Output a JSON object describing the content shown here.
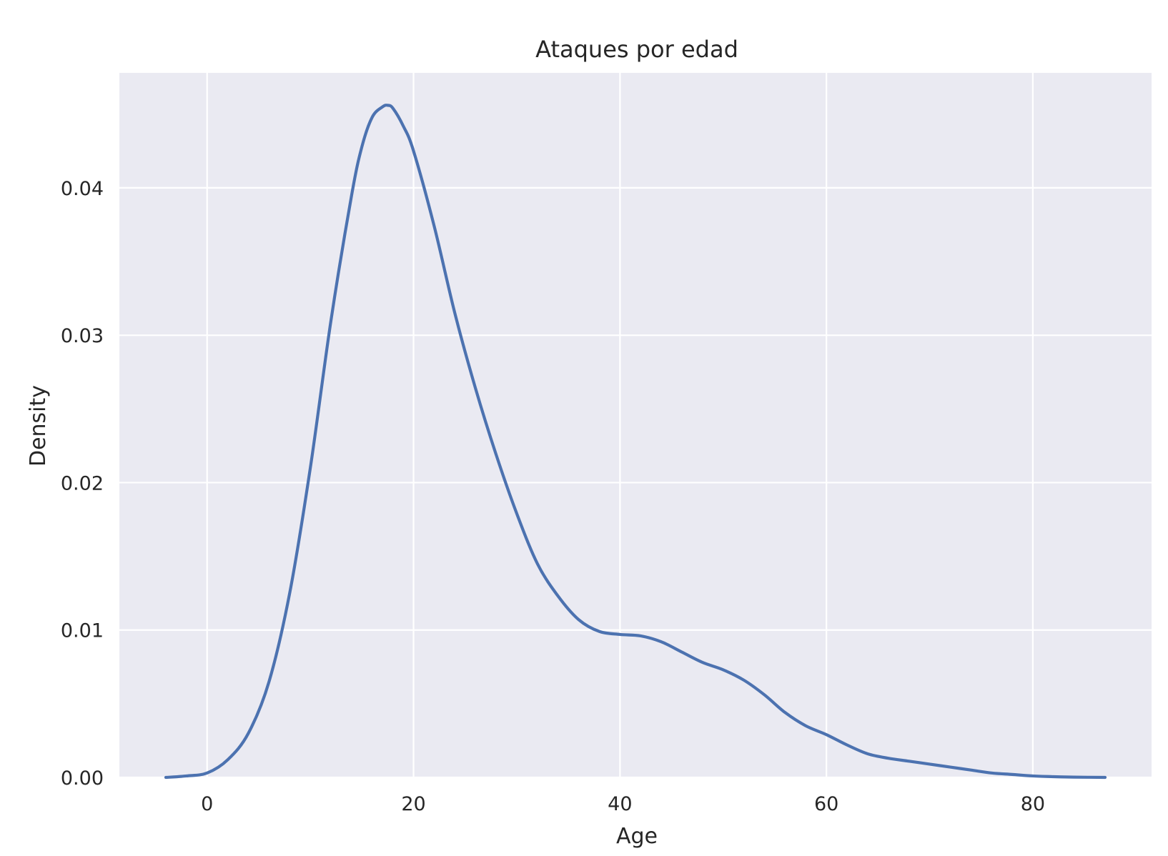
{
  "chart_data": {
    "type": "line",
    "title": "Ataques por edad",
    "xlabel": "Age",
    "ylabel": "Density",
    "xlim": [
      -8.5,
      91.5
    ],
    "ylim": [
      0,
      0.0478
    ],
    "x_ticks": [
      0,
      20,
      40,
      60,
      80
    ],
    "y_ticks": [
      0.0,
      0.01,
      0.02,
      0.03,
      0.04
    ],
    "x_tick_labels": [
      "0",
      "20",
      "40",
      "60",
      "80"
    ],
    "y_tick_labels": [
      "0.00",
      "0.01",
      "0.02",
      "0.03",
      "0.04"
    ],
    "grid": true,
    "legend": "none",
    "colors": {
      "line": "#4c72b0",
      "background": "#eaeaf2",
      "grid": "#ffffff",
      "text": "#262626"
    },
    "series": [
      {
        "x": [
          -4,
          -2,
          0,
          2,
          4,
          6,
          8,
          10,
          12,
          14,
          15,
          16,
          17,
          17.5,
          18,
          19,
          20,
          22,
          24,
          26,
          28,
          30,
          32,
          34,
          36,
          38,
          40,
          42,
          44,
          46,
          48,
          50,
          52,
          54,
          56,
          58,
          60,
          62,
          64,
          66,
          68,
          70,
          72,
          74,
          76,
          78,
          80,
          82,
          84,
          87
        ],
        "y": [
          0.0,
          0.0001,
          0.0003,
          0.0012,
          0.003,
          0.0065,
          0.0125,
          0.021,
          0.031,
          0.0395,
          0.0428,
          0.0448,
          0.0455,
          0.0456,
          0.0454,
          0.0442,
          0.0425,
          0.0374,
          0.0315,
          0.0264,
          0.0219,
          0.0179,
          0.0145,
          0.0123,
          0.0107,
          0.0099,
          0.0097,
          0.0096,
          0.0092,
          0.0085,
          0.0078,
          0.0073,
          0.0066,
          0.0056,
          0.0044,
          0.0035,
          0.0029,
          0.0022,
          0.0016,
          0.0013,
          0.0011,
          0.0009,
          0.0007,
          0.0005,
          0.0003,
          0.0002,
          0.0001,
          5e-05,
          2e-05,
          0.0
        ]
      }
    ]
  }
}
